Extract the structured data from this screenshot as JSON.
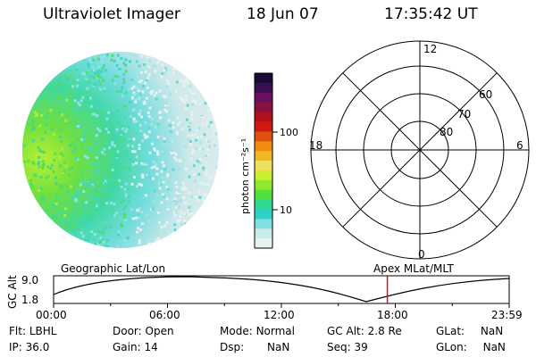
{
  "header": {
    "title": "Ultraviolet Imager",
    "date": "18 Jun 07",
    "time": "17:35:42 UT"
  },
  "colorbar": {
    "unit_label": "photon cm⁻²s⁻¹",
    "ticks": [
      "100",
      "10"
    ],
    "colors": [
      "#1a0a3a",
      "#3a0f50",
      "#6a1060",
      "#8a1040",
      "#b01020",
      "#d01a10",
      "#e05010",
      "#f08a10",
      "#f0b820",
      "#f0e060",
      "#c8f030",
      "#90e830",
      "#50e040",
      "#30d890",
      "#30d0c8",
      "#80e0e0",
      "#c8ecec",
      "#e6f2f2"
    ]
  },
  "polar_grid": {
    "mlt_labels": {
      "top": "12",
      "right": "6",
      "bottom": "0",
      "left": "18"
    },
    "lat_labels": [
      "60",
      "70",
      "80"
    ]
  },
  "timeline": {
    "title_left": "Geographic Lat/Lon",
    "title_right": "Apex MLat/MLT",
    "y_label": "GC Alt",
    "y_ticks": [
      "9.0",
      "1.8"
    ],
    "x_ticks": [
      "00:00",
      "06:00",
      "12:00",
      "18:00",
      "23:59"
    ],
    "marker_time": "17:35",
    "marker_color": "#e01010"
  },
  "info": {
    "filter_label": "Flt:",
    "filter_value": "LBHL",
    "ip_label": "IP:",
    "ip_value": "36.0",
    "door_label": "Door:",
    "door_value": "Open",
    "gain_label": "Gain:",
    "gain_value": "14",
    "mode_label": "Mode:",
    "mode_value": "Normal",
    "dsp_label": "Dsp:",
    "dsp_value": "NaN",
    "gcalt_label": "GC Alt:",
    "gcalt_value": "2.8 Re",
    "seq_label": "Seq:",
    "seq_value": "39",
    "glat_label": "GLat:",
    "glat_value": "NaN",
    "glon_label": "GLon:",
    "glon_value": "NaN"
  }
}
